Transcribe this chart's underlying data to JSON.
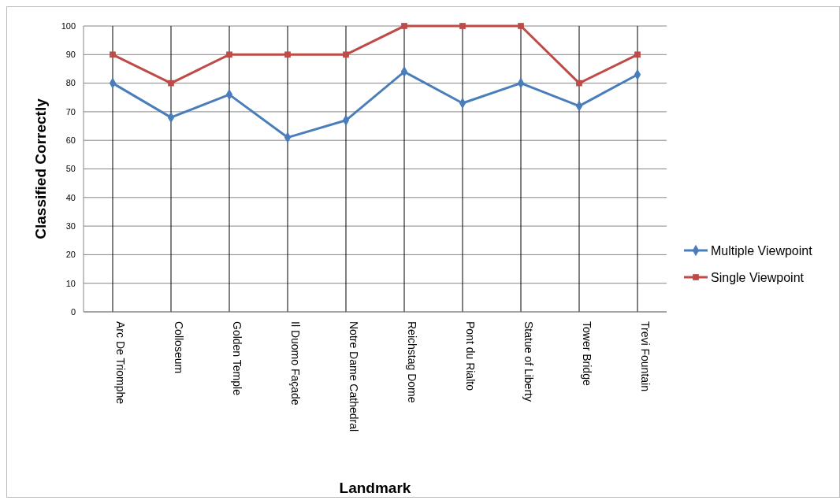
{
  "chart_data": {
    "type": "line",
    "xlabel": "Landmark",
    "ylabel": "Classified Correctly",
    "categories": [
      "Arc De Triomphe",
      "Colloseum",
      "Golden Temple",
      "Il Duomo Façade",
      "Notre Dame Cathedral",
      "Reichstag Dome",
      "Pont du Rialto",
      "Statue of Liberty",
      "Tower Bridge",
      "Trevi Fountain"
    ],
    "series": [
      {
        "name": "Multiple Viewpoint",
        "color": "#4a7ebb",
        "marker": "diamond",
        "values": [
          80,
          68,
          76,
          61,
          67,
          84,
          73,
          80,
          72,
          83
        ]
      },
      {
        "name": "Single Viewpoint",
        "color": "#be4b48",
        "marker": "square",
        "values": [
          90,
          80,
          90,
          90,
          90,
          100,
          100,
          100,
          80,
          90
        ]
      }
    ],
    "ylim": [
      0,
      100
    ],
    "yticks": [
      0,
      10,
      20,
      30,
      40,
      50,
      60,
      70,
      80,
      90,
      100
    ],
    "grid": true,
    "legend": "right",
    "line_style": "solid"
  }
}
